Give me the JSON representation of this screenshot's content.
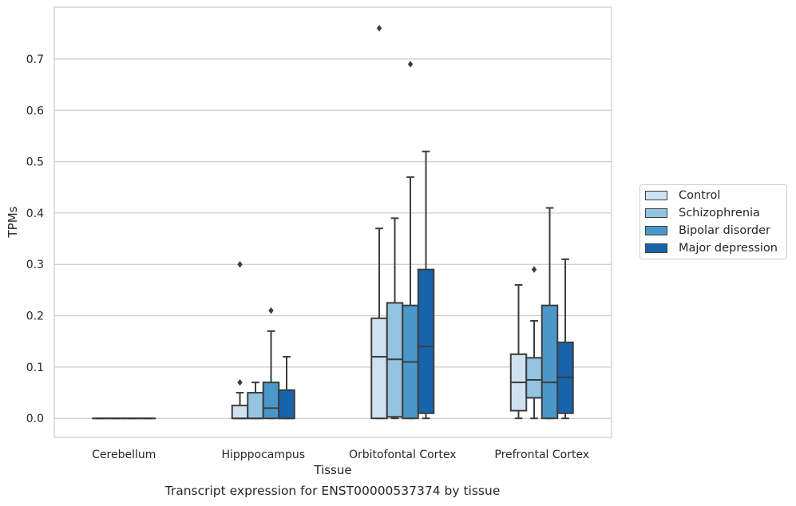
{
  "chart_data": {
    "type": "box",
    "title": "Transcript expression for ENST00000537374 by tissue",
    "xlabel": "Tissue",
    "ylabel": "TPMs",
    "ylim": [
      -0.037,
      0.801
    ],
    "yticks": [
      0.0,
      0.1,
      0.2,
      0.3,
      0.4,
      0.5,
      0.6,
      0.7
    ],
    "ytick_labels": [
      "0.0",
      "0.1",
      "0.2",
      "0.3",
      "0.4",
      "0.5",
      "0.6",
      "0.7"
    ],
    "grid": "horizontal",
    "legend_position": "right",
    "categories": [
      "Cerebellum",
      "Hipppocampus",
      "Orbitofontal Cortex",
      "Prefrontal Cortex"
    ],
    "series": [
      {
        "name": "Control",
        "color": "#d0e1f2",
        "boxes": [
          {
            "whisker_low": 0.0,
            "q1": 0.0,
            "median": 0.0,
            "q3": 0.0,
            "whisker_high": 0.0,
            "outliers": []
          },
          {
            "whisker_low": 0.0,
            "q1": 0.0,
            "median": 0.0,
            "q3": 0.025,
            "whisker_high": 0.05,
            "outliers": [
              0.07,
              0.3
            ]
          },
          {
            "whisker_low": 0.0,
            "q1": 0.0,
            "median": 0.12,
            "q3": 0.195,
            "whisker_high": 0.37,
            "outliers": [
              0.76
            ]
          },
          {
            "whisker_low": 0.0,
            "q1": 0.015,
            "median": 0.07,
            "q3": 0.125,
            "whisker_high": 0.26,
            "outliers": []
          }
        ]
      },
      {
        "name": "Schizophrenia",
        "color": "#94c4df",
        "boxes": [
          {
            "whisker_low": 0.0,
            "q1": 0.0,
            "median": 0.0,
            "q3": 0.0,
            "whisker_high": 0.0,
            "outliers": []
          },
          {
            "whisker_low": 0.0,
            "q1": 0.0,
            "median": 0.0,
            "q3": 0.05,
            "whisker_high": 0.07,
            "outliers": []
          },
          {
            "whisker_low": 0.0,
            "q1": 0.003,
            "median": 0.115,
            "q3": 0.225,
            "whisker_high": 0.39,
            "outliers": []
          },
          {
            "whisker_low": 0.0,
            "q1": 0.04,
            "median": 0.075,
            "q3": 0.118,
            "whisker_high": 0.19,
            "outliers": [
              0.29
            ]
          }
        ]
      },
      {
        "name": "Bipolar disorder",
        "color": "#4a98c9",
        "boxes": [
          {
            "whisker_low": 0.0,
            "q1": 0.0,
            "median": 0.0,
            "q3": 0.0,
            "whisker_high": 0.0,
            "outliers": []
          },
          {
            "whisker_low": 0.0,
            "q1": 0.0,
            "median": 0.02,
            "q3": 0.07,
            "whisker_high": 0.17,
            "outliers": [
              0.21
            ]
          },
          {
            "whisker_low": 0.0,
            "q1": 0.0,
            "median": 0.11,
            "q3": 0.22,
            "whisker_high": 0.47,
            "outliers": [
              0.69
            ]
          },
          {
            "whisker_low": 0.0,
            "q1": 0.0,
            "median": 0.07,
            "q3": 0.22,
            "whisker_high": 0.41,
            "outliers": []
          }
        ]
      },
      {
        "name": "Major depression",
        "color": "#1764ab",
        "boxes": [
          {
            "whisker_low": 0.0,
            "q1": 0.0,
            "median": 0.0,
            "q3": 0.0,
            "whisker_high": 0.0,
            "outliers": []
          },
          {
            "whisker_low": 0.0,
            "q1": 0.0,
            "median": 0.0,
            "q3": 0.055,
            "whisker_high": 0.12,
            "outliers": []
          },
          {
            "whisker_low": 0.0,
            "q1": 0.01,
            "median": 0.14,
            "q3": 0.29,
            "whisker_high": 0.52,
            "outliers": []
          },
          {
            "whisker_low": 0.0,
            "q1": 0.01,
            "median": 0.08,
            "q3": 0.148,
            "whisker_high": 0.31,
            "outliers": []
          }
        ]
      }
    ]
  }
}
